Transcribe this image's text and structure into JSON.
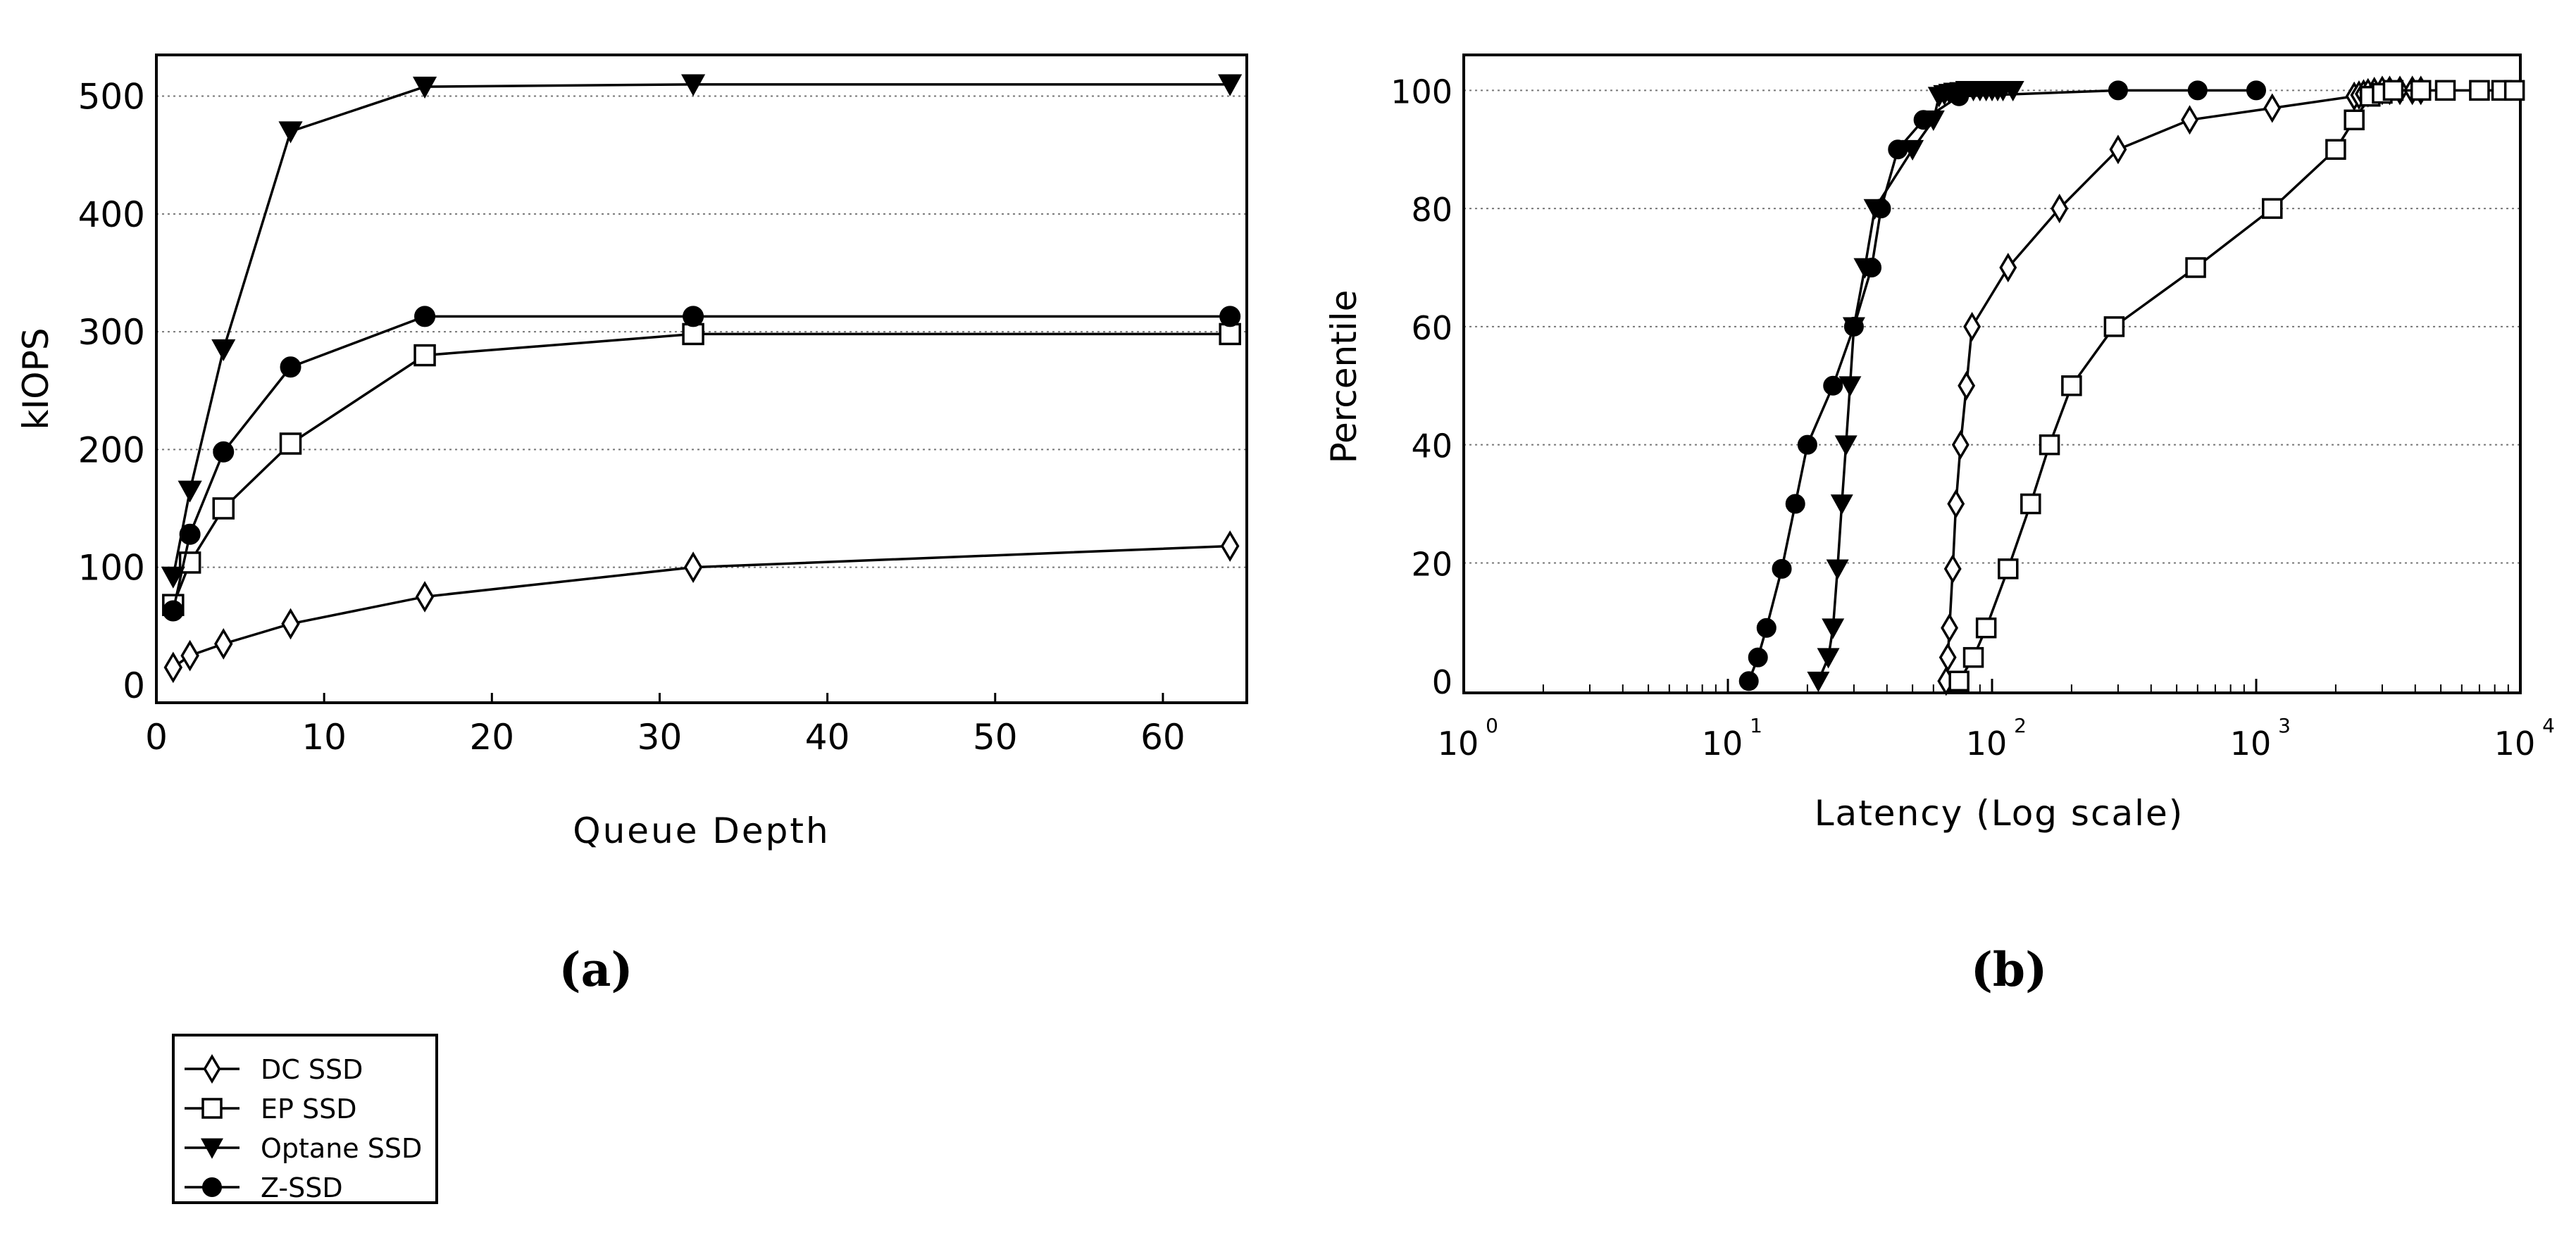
{
  "chart_data": [
    {
      "type": "line",
      "panel_label": "(a)",
      "xlabel": "Queue Depth",
      "ylabel": "kIOPS",
      "xlim": [
        0,
        65
      ],
      "ylim": [
        -15,
        535
      ],
      "xticks": [
        0,
        10,
        20,
        30,
        40,
        50,
        60
      ],
      "yticks": [
        0,
        100,
        200,
        300,
        400,
        500
      ],
      "grid": "y-dotted",
      "series": [
        {
          "name": "DC SSD",
          "marker": "diamond-open",
          "x": [
            1,
            2,
            4,
            8,
            16,
            32,
            64
          ],
          "y": [
            15,
            25,
            35,
            52,
            75,
            100,
            118
          ]
        },
        {
          "name": "EP SSD",
          "marker": "square-open",
          "x": [
            1,
            2,
            4,
            8,
            16,
            32,
            64
          ],
          "y": [
            68,
            104,
            150,
            205,
            280,
            298,
            298
          ]
        },
        {
          "name": "Optane SSD",
          "marker": "triangle-down-filled",
          "x": [
            1,
            2,
            4,
            8,
            16,
            32,
            64
          ],
          "y": [
            92,
            165,
            285,
            470,
            508,
            510,
            510
          ]
        },
        {
          "name": "Z-SSD",
          "marker": "circle-filled",
          "x": [
            1,
            2,
            4,
            8,
            16,
            32,
            64
          ],
          "y": [
            63,
            128,
            198,
            270,
            313,
            313,
            313
          ]
        }
      ]
    },
    {
      "type": "line",
      "panel_label": "(b)",
      "xlabel": "Latency (Log scale)",
      "ylabel": "Percentile",
      "xscale": "log",
      "xlim": [
        1,
        10000
      ],
      "ylim": [
        -2,
        106
      ],
      "xtick_base": "10",
      "xtick_exponents": [
        "0",
        "1",
        "2",
        "3",
        "4"
      ],
      "yticks": [
        0,
        20,
        40,
        60,
        80,
        100
      ],
      "grid": "y-dotted",
      "series": [
        {
          "name": "DC SSD",
          "marker": "diamond-open",
          "x": [
            67,
            68,
            69,
            71,
            73,
            76,
            80,
            84,
            115,
            180,
            300,
            560,
            1150,
            2350,
            2450,
            2550,
            2650,
            2800,
            3000,
            3200,
            3500,
            3900,
            4200
          ],
          "y": [
            0,
            4,
            9,
            19,
            30,
            40,
            50,
            60,
            70,
            80,
            90,
            95,
            97,
            99,
            99.2,
            99.4,
            99.6,
            99.8,
            100,
            100,
            100,
            100,
            100
          ]
        },
        {
          "name": "EP SSD",
          "marker": "square-open",
          "x": [
            75,
            85,
            95,
            115,
            140,
            165,
            200,
            290,
            590,
            1150,
            2000,
            2350,
            2700,
            3000,
            3300,
            4200,
            5200,
            7000,
            8500,
            9500
          ],
          "y": [
            0,
            4,
            9,
            19,
            30,
            40,
            50,
            60,
            70,
            80,
            90,
            95,
            99,
            99.5,
            100,
            100,
            100,
            100,
            100,
            100
          ]
        },
        {
          "name": "Optane SSD",
          "marker": "triangle-down-filled",
          "x": [
            22,
            24,
            25,
            26,
            27,
            28,
            29,
            30,
            33,
            36,
            50,
            60,
            63,
            66,
            69,
            72,
            76,
            80,
            85,
            90,
            95,
            100,
            105,
            110,
            120
          ],
          "y": [
            0,
            4,
            9,
            19,
            30,
            40,
            50,
            60,
            70,
            80,
            90,
            95,
            99,
            99.3,
            99.5,
            99.7,
            99.8,
            100,
            100,
            100,
            100,
            100,
            100,
            100,
            100
          ]
        },
        {
          "name": "Z-SSD",
          "marker": "circle-filled",
          "x": [
            12,
            13,
            14,
            16,
            18,
            20,
            25,
            30,
            35,
            38,
            44,
            55,
            75,
            300,
            600,
            1000
          ],
          "y": [
            0,
            4,
            9,
            19,
            30,
            40,
            50,
            60,
            70,
            80,
            90,
            95,
            99,
            100,
            100,
            100
          ]
        }
      ]
    }
  ],
  "legend": {
    "placement": "bottom-left",
    "items": [
      {
        "label": "DC SSD",
        "marker": "diamond-open"
      },
      {
        "label": "EP SSD",
        "marker": "square-open"
      },
      {
        "label": "Optane SSD",
        "marker": "triangle-down-filled"
      },
      {
        "label": "Z-SSD",
        "marker": "circle-filled"
      }
    ]
  }
}
